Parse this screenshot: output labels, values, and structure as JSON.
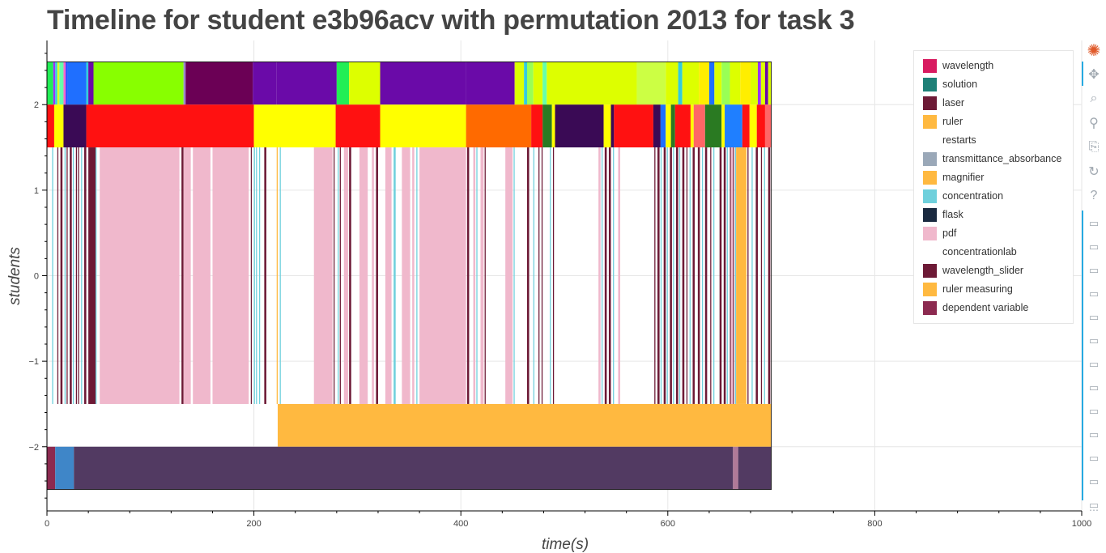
{
  "chart_data": {
    "type": "timeline",
    "title": "Timeline for student e3b96acv with permutation 2013 for task 3",
    "xlabel": "time(s)",
    "ylabel": "students",
    "xlim": [
      0,
      1000
    ],
    "ylim": [
      -2.75,
      2.75
    ],
    "x_ticks": [
      0,
      200,
      400,
      600,
      800,
      1000
    ],
    "y_ticks": [
      2,
      1,
      0,
      -1,
      -2
    ],
    "y_tick_labels": [
      "2",
      "1",
      "0",
      "−1",
      "−2"
    ],
    "grid": true,
    "legend_position": "top-right",
    "legend": [
      {
        "label": "wavelength",
        "color": "#d81b60"
      },
      {
        "label": "solution",
        "color": "#1e8077"
      },
      {
        "label": "laser",
        "color": "#6d1a36"
      },
      {
        "label": "ruler",
        "color": "#ffb940"
      },
      {
        "label": "restarts",
        "color": "#ffffff"
      },
      {
        "label": "transmittance_absorbance",
        "color": "#9aa8b8"
      },
      {
        "label": "magnifier",
        "color": "#ffb940"
      },
      {
        "label": "concentration",
        "color": "#6fd0dc"
      },
      {
        "label": "flask",
        "color": "#1a2a40"
      },
      {
        "label": "pdf",
        "color": "#f0b8cc"
      },
      {
        "label": "concentrationlab",
        "color": "#ffffff"
      },
      {
        "label": "wavelength_slider",
        "color": "#6d1a36"
      },
      {
        "label": "ruler measuring",
        "color": "#ffb940"
      },
      {
        "label": "dependent variable",
        "color": "#8c2a50"
      }
    ],
    "rows": [
      {
        "y0": 2,
        "y1": 2.5,
        "segments": [
          {
            "x0": 0,
            "x1": 6,
            "color": "#22ee55"
          },
          {
            "x0": 6,
            "x1": 8,
            "color": "#9933ff"
          },
          {
            "x0": 8,
            "x1": 10,
            "color": "#33ccdd"
          },
          {
            "x0": 10,
            "x1": 12,
            "color": "#ddff22"
          },
          {
            "x0": 12,
            "x1": 16,
            "color": "#66ffaa"
          },
          {
            "x0": 16,
            "x1": 18,
            "color": "#ff66cc"
          },
          {
            "x0": 18,
            "x1": 20,
            "color": "#3355ff"
          },
          {
            "x0": 20,
            "x1": 38,
            "color": "#1f6fff"
          },
          {
            "x0": 38,
            "x1": 40,
            "color": "#33ccdd"
          },
          {
            "x0": 40,
            "x1": 45,
            "color": "#6a0aa8"
          },
          {
            "x0": 45,
            "x1": 132,
            "color": "#88ff00"
          },
          {
            "x0": 132,
            "x1": 134,
            "color": "#9988cc"
          },
          {
            "x0": 134,
            "x1": 199,
            "color": "#6b0055"
          },
          {
            "x0": 199,
            "x1": 222,
            "color": "#6a0aa8"
          },
          {
            "x0": 222,
            "x1": 280,
            "color": "#6a0aa8"
          },
          {
            "x0": 280,
            "x1": 292,
            "color": "#22ee55"
          },
          {
            "x0": 292,
            "x1": 322,
            "color": "#ddff00"
          },
          {
            "x0": 322,
            "x1": 405,
            "color": "#6a0aa8"
          },
          {
            "x0": 405,
            "x1": 452,
            "color": "#6a0aa8"
          },
          {
            "x0": 452,
            "x1": 461,
            "color": "#ddff00"
          },
          {
            "x0": 461,
            "x1": 464,
            "color": "#33ccdd"
          },
          {
            "x0": 464,
            "x1": 470,
            "color": "#99ff55"
          },
          {
            "x0": 470,
            "x1": 479,
            "color": "#ddff00"
          },
          {
            "x0": 479,
            "x1": 483,
            "color": "#66ffaa"
          },
          {
            "x0": 483,
            "x1": 570,
            "color": "#ddff00"
          },
          {
            "x0": 570,
            "x1": 598,
            "color": "#ccff44"
          },
          {
            "x0": 598,
            "x1": 610,
            "color": "#ddff00"
          },
          {
            "x0": 610,
            "x1": 614,
            "color": "#33ccdd"
          },
          {
            "x0": 614,
            "x1": 630,
            "color": "#ddff00"
          },
          {
            "x0": 630,
            "x1": 640,
            "color": "#ffee00"
          },
          {
            "x0": 640,
            "x1": 645,
            "color": "#1f6fff"
          },
          {
            "x0": 645,
            "x1": 652,
            "color": "#ddff00"
          },
          {
            "x0": 652,
            "x1": 660,
            "color": "#99ff55"
          },
          {
            "x0": 660,
            "x1": 670,
            "color": "#ddff00"
          },
          {
            "x0": 670,
            "x1": 680,
            "color": "#ffee00"
          },
          {
            "x0": 680,
            "x1": 687,
            "color": "#ddff00"
          },
          {
            "x0": 687,
            "x1": 690,
            "color": "#9933ff"
          },
          {
            "x0": 690,
            "x1": 694,
            "color": "#ddff00"
          },
          {
            "x0": 694,
            "x1": 697,
            "color": "#6a0aa8"
          },
          {
            "x0": 697,
            "x1": 700,
            "color": "#ddff00"
          }
        ]
      },
      {
        "y0": 1.5,
        "y1": 2,
        "segments": [
          {
            "x0": 0,
            "x1": 7,
            "color": "#ff1111"
          },
          {
            "x0": 7,
            "x1": 16,
            "color": "#ffff00"
          },
          {
            "x0": 16,
            "x1": 38,
            "color": "#3a0a55"
          },
          {
            "x0": 38,
            "x1": 200,
            "color": "#ff1111"
          },
          {
            "x0": 200,
            "x1": 279,
            "color": "#ffff00"
          },
          {
            "x0": 279,
            "x1": 322,
            "color": "#ff1111"
          },
          {
            "x0": 322,
            "x1": 405,
            "color": "#ffff00"
          },
          {
            "x0": 405,
            "x1": 468,
            "color": "#ff6a00"
          },
          {
            "x0": 468,
            "x1": 479,
            "color": "#ff1111"
          },
          {
            "x0": 479,
            "x1": 488,
            "color": "#2a7a22"
          },
          {
            "x0": 488,
            "x1": 491,
            "color": "#ffff00"
          },
          {
            "x0": 491,
            "x1": 538,
            "color": "#3a0a55"
          },
          {
            "x0": 538,
            "x1": 545,
            "color": "#ffff00"
          },
          {
            "x0": 545,
            "x1": 548,
            "color": "#3a0a55"
          },
          {
            "x0": 548,
            "x1": 586,
            "color": "#ff1111"
          },
          {
            "x0": 586,
            "x1": 593,
            "color": "#3a0a55"
          },
          {
            "x0": 593,
            "x1": 598,
            "color": "#1f6fff"
          },
          {
            "x0": 598,
            "x1": 603,
            "color": "#ffff00"
          },
          {
            "x0": 603,
            "x1": 607,
            "color": "#2a7a22"
          },
          {
            "x0": 607,
            "x1": 622,
            "color": "#ff1111"
          },
          {
            "x0": 622,
            "x1": 625,
            "color": "#ffff00"
          },
          {
            "x0": 625,
            "x1": 636,
            "color": "#ff6666"
          },
          {
            "x0": 636,
            "x1": 652,
            "color": "#2a7a22"
          },
          {
            "x0": 652,
            "x1": 655,
            "color": "#ffff00"
          },
          {
            "x0": 655,
            "x1": 672,
            "color": "#1f7fff"
          },
          {
            "x0": 672,
            "x1": 679,
            "color": "#ff1111"
          },
          {
            "x0": 679,
            "x1": 686,
            "color": "#ffff00"
          },
          {
            "x0": 686,
            "x1": 694,
            "color": "#ff1111"
          },
          {
            "x0": 694,
            "x1": 700,
            "color": "#ff6666"
          }
        ]
      },
      {
        "y0": -1.5,
        "y1": 1.5,
        "segments": [
          {
            "x0": 5,
            "x1": 6,
            "color": "#6fd0dc"
          },
          {
            "x0": 10,
            "x1": 11,
            "color": "#6d1a36"
          },
          {
            "x0": 13,
            "x1": 15,
            "color": "#6d1a36"
          },
          {
            "x0": 17,
            "x1": 18,
            "color": "#6fd0dc"
          },
          {
            "x0": 19,
            "x1": 20,
            "color": "#6d1a36"
          },
          {
            "x0": 22,
            "x1": 24,
            "color": "#6d1a36"
          },
          {
            "x0": 25,
            "x1": 26,
            "color": "#6fd0dc"
          },
          {
            "x0": 28,
            "x1": 29,
            "color": "#6d1a36"
          },
          {
            "x0": 30,
            "x1": 31,
            "color": "#6d1a36"
          },
          {
            "x0": 33,
            "x1": 34,
            "color": "#6fd0dc"
          },
          {
            "x0": 36,
            "x1": 38,
            "color": "#6d1a36"
          },
          {
            "x0": 40,
            "x1": 47,
            "color": "#6d1a36"
          },
          {
            "x0": 47,
            "x1": 48,
            "color": "#6fd0dc"
          },
          {
            "x0": 51,
            "x1": 128,
            "color": "#f0b8cc"
          },
          {
            "x0": 130,
            "x1": 132,
            "color": "#6d1a36"
          },
          {
            "x0": 132,
            "x1": 139,
            "color": "#f0b8cc"
          },
          {
            "x0": 141,
            "x1": 158,
            "color": "#f0b8cc"
          },
          {
            "x0": 160,
            "x1": 195,
            "color": "#f0b8cc"
          },
          {
            "x0": 197,
            "x1": 198,
            "color": "#6d1a36"
          },
          {
            "x0": 200,
            "x1": 201,
            "color": "#6fd0dc"
          },
          {
            "x0": 202,
            "x1": 203,
            "color": "#6fd0dc"
          },
          {
            "x0": 205,
            "x1": 206,
            "color": "#6fd0dc"
          },
          {
            "x0": 210,
            "x1": 212,
            "color": "#6d1a36"
          },
          {
            "x0": 222,
            "x1": 223,
            "color": "#ffb940"
          },
          {
            "x0": 225,
            "x1": 226,
            "color": "#6fd0dc"
          },
          {
            "x0": 258,
            "x1": 276,
            "color": "#f0b8cc"
          },
          {
            "x0": 277,
            "x1": 278,
            "color": "#6d1a36"
          },
          {
            "x0": 281,
            "x1": 282,
            "color": "#6fd0dc"
          },
          {
            "x0": 283,
            "x1": 284,
            "color": "#6d1a36"
          },
          {
            "x0": 287,
            "x1": 291,
            "color": "#f0b8cc"
          },
          {
            "x0": 292,
            "x1": 294,
            "color": "#6d1a36"
          },
          {
            "x0": 302,
            "x1": 310,
            "color": "#f0b8cc"
          },
          {
            "x0": 314,
            "x1": 316,
            "color": "#f0b8cc"
          },
          {
            "x0": 318,
            "x1": 320,
            "color": "#6d1a36"
          },
          {
            "x0": 327,
            "x1": 333,
            "color": "#f0b8cc"
          },
          {
            "x0": 335,
            "x1": 337,
            "color": "#6fd0dc"
          },
          {
            "x0": 343,
            "x1": 351,
            "color": "#f0b8cc"
          },
          {
            "x0": 353,
            "x1": 355,
            "color": "#f0b8cc"
          },
          {
            "x0": 357,
            "x1": 358,
            "color": "#6fd0dc"
          },
          {
            "x0": 360,
            "x1": 405,
            "color": "#f0b8cc"
          },
          {
            "x0": 406,
            "x1": 408,
            "color": "#6d1a36"
          },
          {
            "x0": 412,
            "x1": 414,
            "color": "#f0b8cc"
          },
          {
            "x0": 415,
            "x1": 416,
            "color": "#6fd0dc"
          },
          {
            "x0": 419,
            "x1": 422,
            "color": "#f0b8cc"
          },
          {
            "x0": 423,
            "x1": 424,
            "color": "#6d1a36"
          },
          {
            "x0": 443,
            "x1": 450,
            "color": "#f0b8cc"
          },
          {
            "x0": 451,
            "x1": 452,
            "color": "#6fd0dc"
          },
          {
            "x0": 464,
            "x1": 466,
            "color": "#6d1a36"
          },
          {
            "x0": 470,
            "x1": 471,
            "color": "#6fd0dc"
          },
          {
            "x0": 475,
            "x1": 476,
            "color": "#6d1a36"
          },
          {
            "x0": 478,
            "x1": 479,
            "color": "#6d1a36"
          },
          {
            "x0": 486,
            "x1": 487,
            "color": "#6fd0dc"
          },
          {
            "x0": 489,
            "x1": 490,
            "color": "#6d1a36"
          },
          {
            "x0": 533,
            "x1": 535,
            "color": "#f0b8cc"
          },
          {
            "x0": 536,
            "x1": 537,
            "color": "#6fd0dc"
          },
          {
            "x0": 539,
            "x1": 541,
            "color": "#6d1a36"
          },
          {
            "x0": 543,
            "x1": 545,
            "color": "#6d1a36"
          },
          {
            "x0": 547,
            "x1": 548,
            "color": "#6fd0dc"
          },
          {
            "x0": 552,
            "x1": 554,
            "color": "#f0b8cc"
          },
          {
            "x0": 587,
            "x1": 588,
            "color": "#6d1a36"
          },
          {
            "x0": 590,
            "x1": 592,
            "color": "#6d1a36"
          },
          {
            "x0": 593,
            "x1": 594,
            "color": "#6fd0dc"
          },
          {
            "x0": 596,
            "x1": 598,
            "color": "#6d1a36"
          },
          {
            "x0": 599,
            "x1": 600,
            "color": "#6fd0dc"
          },
          {
            "x0": 602,
            "x1": 604,
            "color": "#6d1a36"
          },
          {
            "x0": 605,
            "x1": 606,
            "color": "#6fd0dc"
          },
          {
            "x0": 608,
            "x1": 610,
            "color": "#6d1a36"
          },
          {
            "x0": 611,
            "x1": 612,
            "color": "#6fd0dc"
          },
          {
            "x0": 614,
            "x1": 616,
            "color": "#6d1a36"
          },
          {
            "x0": 618,
            "x1": 619,
            "color": "#6d1a36"
          },
          {
            "x0": 621,
            "x1": 622,
            "color": "#6fd0dc"
          },
          {
            "x0": 624,
            "x1": 626,
            "color": "#6d1a36"
          },
          {
            "x0": 629,
            "x1": 631,
            "color": "#6d1a36"
          },
          {
            "x0": 633,
            "x1": 634,
            "color": "#6fd0dc"
          },
          {
            "x0": 636,
            "x1": 638,
            "color": "#6d1a36"
          },
          {
            "x0": 641,
            "x1": 642,
            "color": "#6d1a36"
          },
          {
            "x0": 644,
            "x1": 645,
            "color": "#6fd0dc"
          },
          {
            "x0": 650,
            "x1": 652,
            "color": "#6d1a36"
          },
          {
            "x0": 654,
            "x1": 656,
            "color": "#6d1a36"
          },
          {
            "x0": 657,
            "x1": 658,
            "color": "#6fd0dc"
          },
          {
            "x0": 660,
            "x1": 661,
            "color": "#6d1a36"
          },
          {
            "x0": 663,
            "x1": 664,
            "color": "#6d1a36"
          },
          {
            "x0": 665,
            "x1": 666,
            "color": "#6fd0dc"
          },
          {
            "x0": 661,
            "x1": 663,
            "color": "#f0b8cc"
          },
          {
            "x0": 666,
            "x1": 676,
            "color": "#ffb940"
          },
          {
            "x0": 677,
            "x1": 678,
            "color": "#6d1a36"
          },
          {
            "x0": 681,
            "x1": 682,
            "color": "#6fd0dc"
          },
          {
            "x0": 685,
            "x1": 687,
            "color": "#6d1a36"
          },
          {
            "x0": 690,
            "x1": 691,
            "color": "#6d1a36"
          },
          {
            "x0": 693,
            "x1": 694,
            "color": "#6fd0dc"
          },
          {
            "x0": 697,
            "x1": 699,
            "color": "#6d1a36"
          }
        ]
      },
      {
        "y0": -2,
        "y1": -1.5,
        "segments": [
          {
            "x0": 223,
            "x1": 700,
            "color": "#ffb940"
          }
        ]
      },
      {
        "y0": -2.5,
        "y1": -2,
        "segments": [
          {
            "x0": 0,
            "x1": 8,
            "color": "#8c2a50"
          },
          {
            "x0": 8,
            "x1": 26,
            "color": "#3f86c8"
          },
          {
            "x0": 26,
            "x1": 663,
            "color": "#523a62"
          },
          {
            "x0": 663,
            "x1": 668,
            "color": "#b07a98"
          },
          {
            "x0": 668,
            "x1": 700,
            "color": "#523a62"
          }
        ]
      }
    ],
    "frame": {
      "x0": 0,
      "x1": 700,
      "y0": -2.5,
      "y1": 2.5
    }
  },
  "toolbar": {
    "buttons": [
      {
        "name": "bokeh-logo-icon",
        "glyph": "✺"
      },
      {
        "name": "pan-icon",
        "glyph": "✥"
      },
      {
        "name": "box-zoom-icon",
        "glyph": "⌕"
      },
      {
        "name": "wheel-zoom-icon",
        "glyph": "⚲"
      },
      {
        "name": "save-icon",
        "glyph": "⎘"
      },
      {
        "name": "reset-icon",
        "glyph": "↻"
      },
      {
        "name": "help-icon",
        "glyph": "?"
      }
    ],
    "hover_count": 13,
    "hover_glyph": "▭",
    "more_glyph": "⋯"
  }
}
